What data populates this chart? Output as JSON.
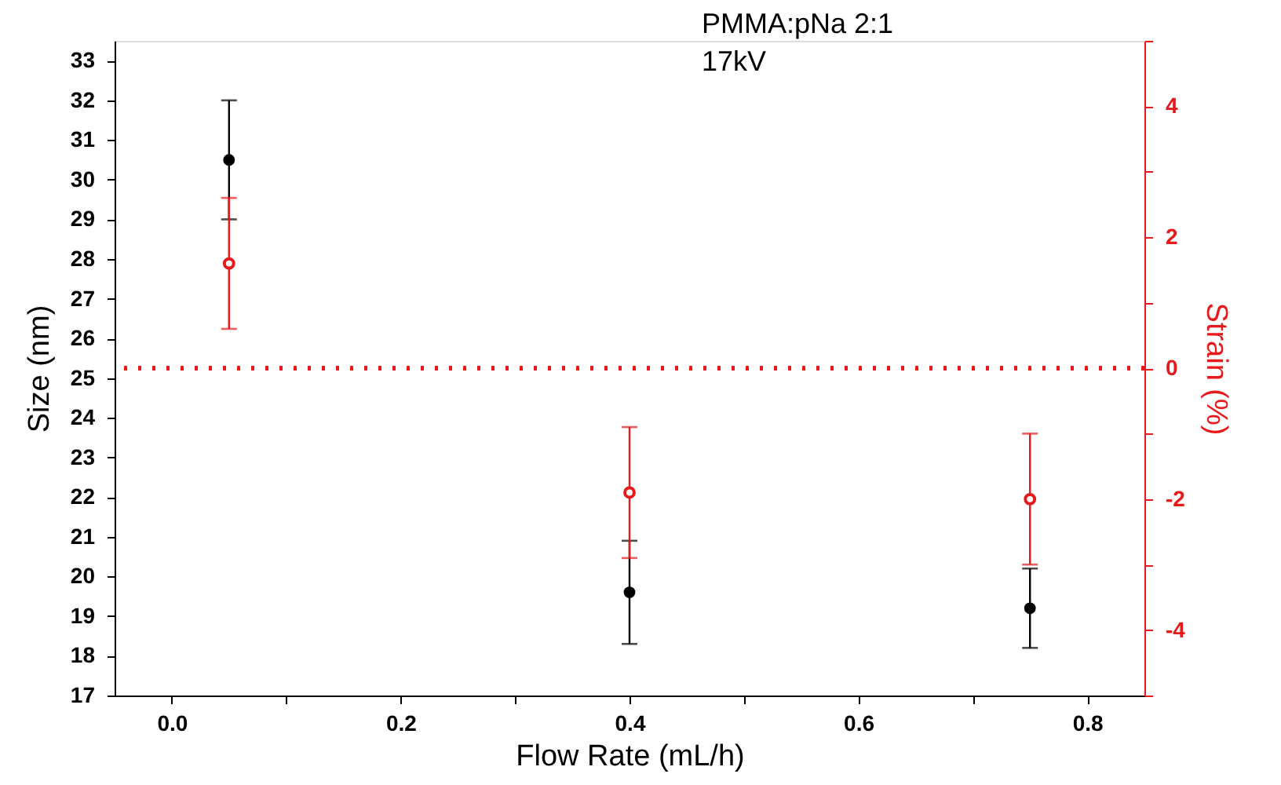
{
  "chart_data": {
    "type": "scatter",
    "xlabel": "Flow Rate (mL/h)",
    "ylabel": "Size (nm)",
    "y2label": "Strain (%)",
    "annotations": [
      "PMMA:pNa 2:1",
      "17kV"
    ],
    "xlim": [
      -0.05,
      0.85
    ],
    "xticks": [
      {
        "value": 0,
        "label": "0.0"
      },
      {
        "value": 0.1,
        "label": null
      },
      {
        "value": 0.2,
        "label": "0.2"
      },
      {
        "value": 0.3,
        "label": null
      },
      {
        "value": 0.4,
        "label": "0.4"
      },
      {
        "value": 0.5,
        "label": null
      },
      {
        "value": 0.6,
        "label": "0.6"
      },
      {
        "value": 0.7,
        "label": null
      },
      {
        "value": 0.8,
        "label": "0.8"
      }
    ],
    "ylim": [
      17,
      33.5
    ],
    "yticks": [
      17,
      18,
      19,
      20,
      21,
      22,
      23,
      24,
      25,
      26,
      27,
      28,
      29,
      30,
      31,
      32,
      33
    ],
    "y2lim": [
      -5,
      5
    ],
    "y2ticks": [
      {
        "value": -5,
        "label": null
      },
      -4,
      {
        "value": -3,
        "label": null
      },
      -2,
      {
        "value": -1,
        "label": null
      },
      0,
      {
        "value": 1,
        "label": null
      },
      2,
      {
        "value": 3,
        "label": null
      },
      4,
      {
        "value": 5,
        "label": null
      }
    ],
    "x": [
      0.05,
      0.4,
      0.75
    ],
    "marker": "circle",
    "grid": false,
    "series": [
      {
        "color": "#000000",
        "values": [
          30.5,
          19.6,
          19.2
        ],
        "errors": [
          1.5,
          1.3,
          1.0
        ]
      },
      {
        "color": "#e8191a",
        "axis": "y2",
        "values": [
          1.6,
          -1.9,
          -2.0
        ],
        "errors": [
          1.0,
          1.0,
          1.0
        ]
      }
    ],
    "ref_lines": [
      {
        "axis": "y2",
        "value": 0,
        "color": "#e8191a",
        "line_style": "dotted"
      }
    ]
  }
}
